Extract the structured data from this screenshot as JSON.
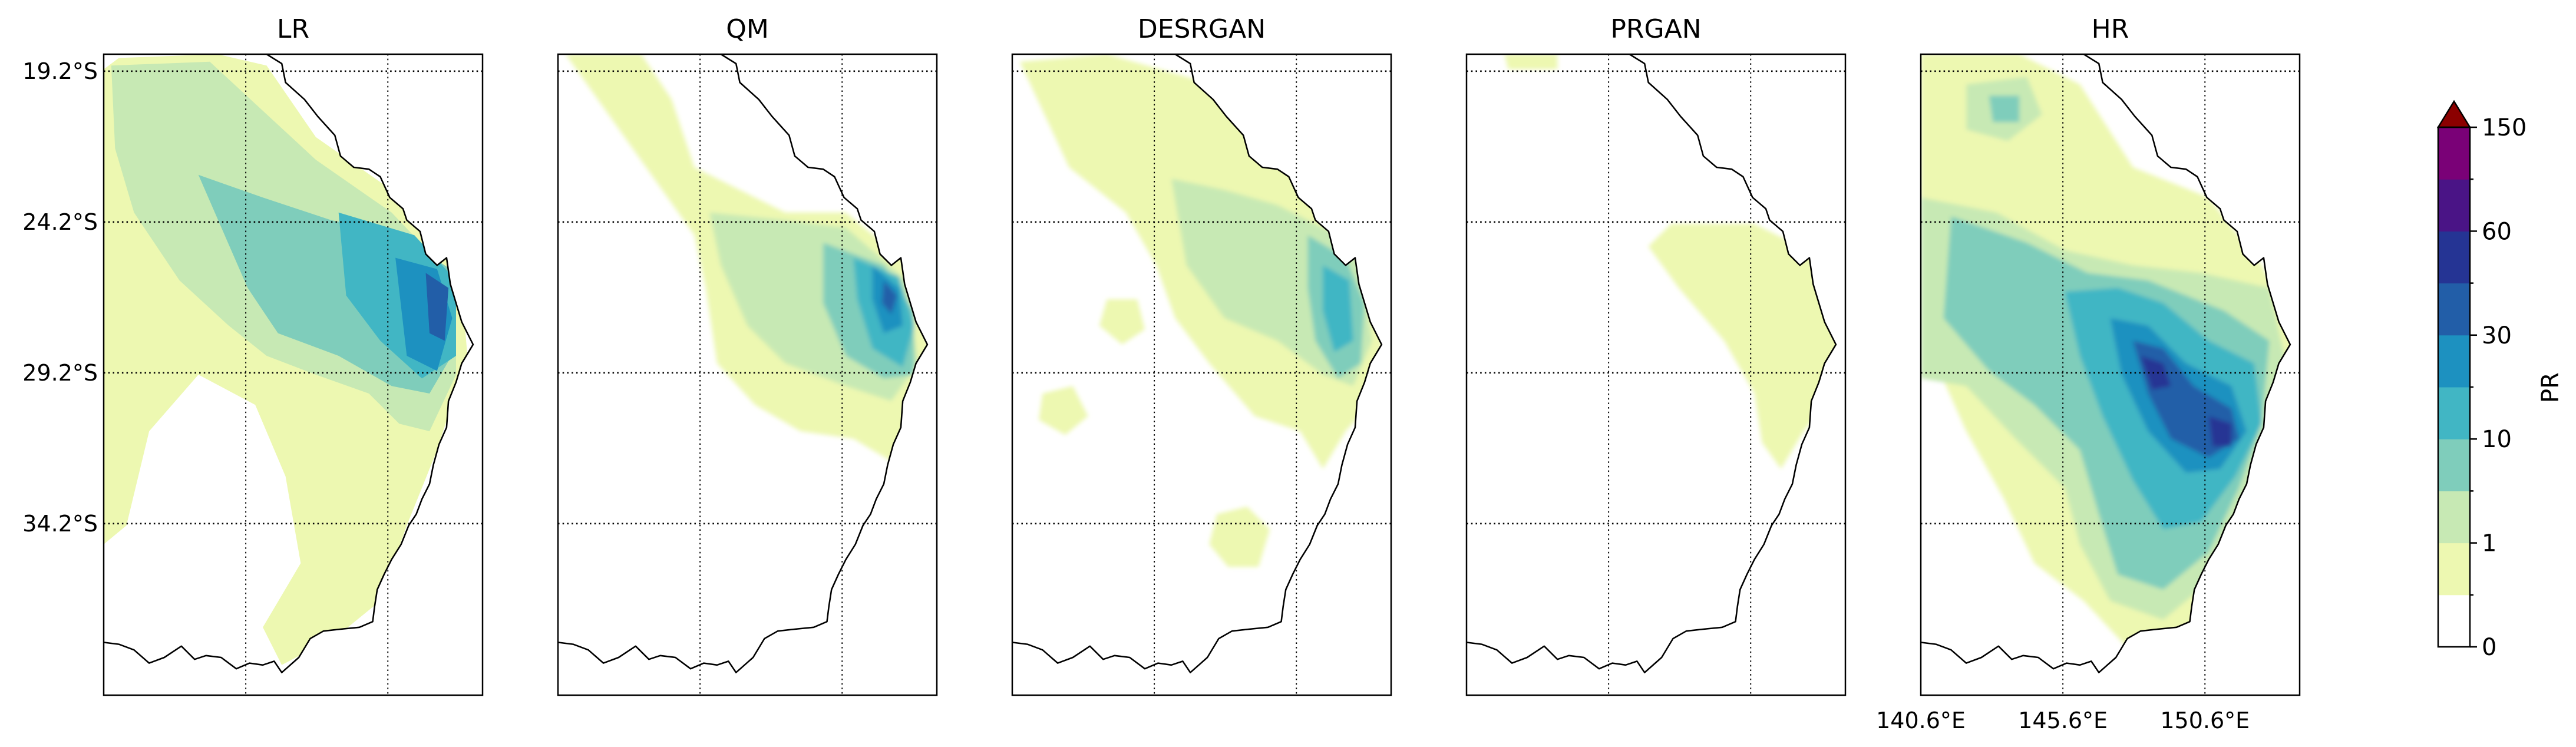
{
  "chart_data": {
    "type": "heatmap",
    "panels": [
      {
        "title": "LR"
      },
      {
        "title": "QM"
      },
      {
        "title": "DESRGAN"
      },
      {
        "title": "PRGAN"
      },
      {
        "title": "HR"
      }
    ],
    "y_ticks": [
      "19.2°S",
      "24.2°S",
      "29.2°S",
      "34.2°S"
    ],
    "x_ticks": [
      "140.6°E",
      "145.6°E",
      "150.6°E"
    ],
    "grid": "dotted",
    "colorbar": {
      "label": "PR",
      "tick_labels": [
        "0",
        "1",
        "10",
        "30",
        "60",
        "150"
      ],
      "colors": [
        "#ffffff",
        "#edf8b1",
        "#c7e9b4",
        "#7fcdbb",
        "#41b6c4",
        "#1d91c0",
        "#225ea8",
        "#253494",
        "#4a1486",
        "#7a0177",
        "#8b0000"
      ],
      "extend": "max"
    }
  }
}
